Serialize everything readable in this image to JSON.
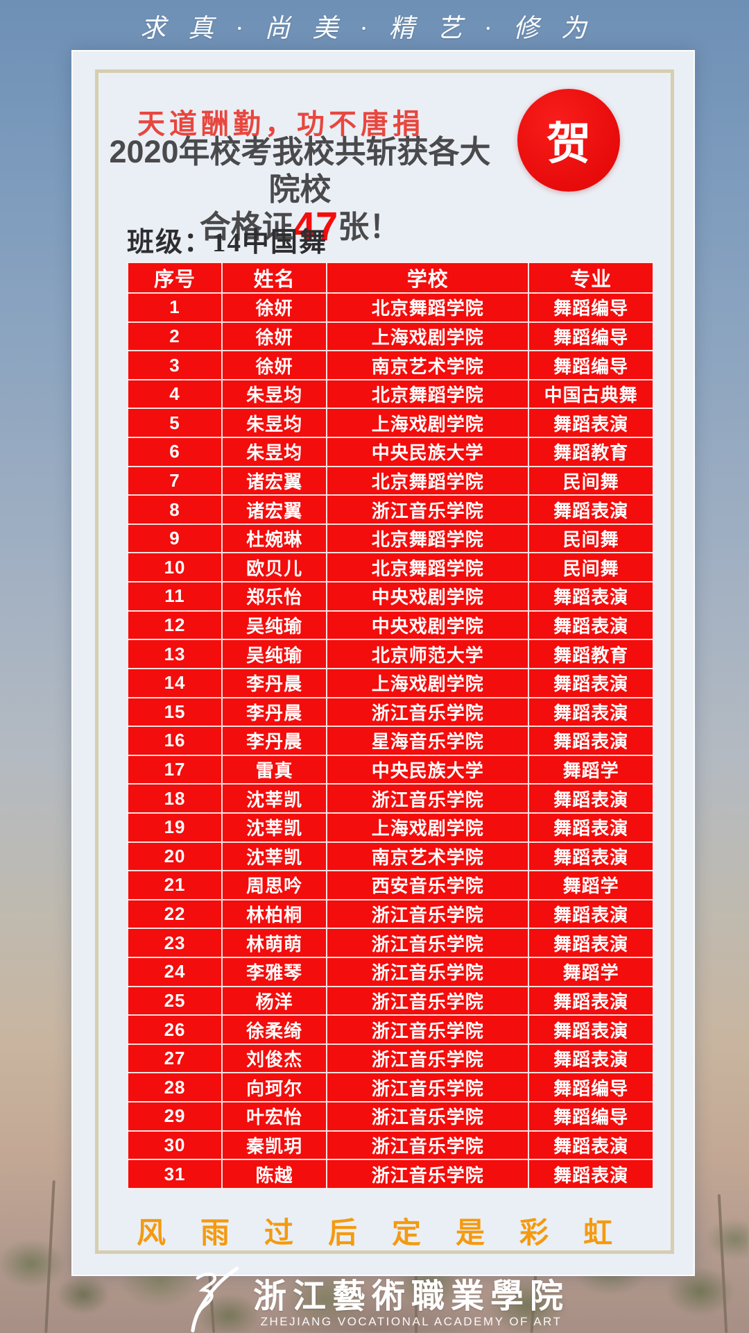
{
  "motto": "求真·尚美·精艺·修为",
  "card": {
    "slogan_calligraphy": "天道酬勤，功不唐捐",
    "title_line1": "2020年校考我校共斩获各大院校",
    "title_line2_prefix": "合格证",
    "certificate_count": "47",
    "title_line2_suffix": "张！",
    "badge": "贺",
    "class_label": "班级：14中国舞",
    "bottom_slogan": "风雨过后定是彩虹"
  },
  "table": {
    "headers": [
      "序号",
      "姓名",
      "学校",
      "专业"
    ],
    "rows": [
      [
        "1",
        "徐妍",
        "北京舞蹈学院",
        "舞蹈编导"
      ],
      [
        "2",
        "徐妍",
        "上海戏剧学院",
        "舞蹈编导"
      ],
      [
        "3",
        "徐妍",
        "南京艺术学院",
        "舞蹈编导"
      ],
      [
        "4",
        "朱昱均",
        "北京舞蹈学院",
        "中国古典舞"
      ],
      [
        "5",
        "朱昱均",
        "上海戏剧学院",
        "舞蹈表演"
      ],
      [
        "6",
        "朱昱均",
        "中央民族大学",
        "舞蹈教育"
      ],
      [
        "7",
        "诸宏翼",
        "北京舞蹈学院",
        "民间舞"
      ],
      [
        "8",
        "诸宏翼",
        "浙江音乐学院",
        "舞蹈表演"
      ],
      [
        "9",
        "杜婉琳",
        "北京舞蹈学院",
        "民间舞"
      ],
      [
        "10",
        "欧贝儿",
        "北京舞蹈学院",
        "民间舞"
      ],
      [
        "11",
        "郑乐怡",
        "中央戏剧学院",
        "舞蹈表演"
      ],
      [
        "12",
        "吴纯瑜",
        "中央戏剧学院",
        "舞蹈表演"
      ],
      [
        "13",
        "吴纯瑜",
        "北京师范大学",
        "舞蹈教育"
      ],
      [
        "14",
        "李丹晨",
        "上海戏剧学院",
        "舞蹈表演"
      ],
      [
        "15",
        "李丹晨",
        "浙江音乐学院",
        "舞蹈表演"
      ],
      [
        "16",
        "李丹晨",
        "星海音乐学院",
        "舞蹈表演"
      ],
      [
        "17",
        "雷真",
        "中央民族大学",
        "舞蹈学"
      ],
      [
        "18",
        "沈莘凯",
        "浙江音乐学院",
        "舞蹈表演"
      ],
      [
        "19",
        "沈莘凯",
        "上海戏剧学院",
        "舞蹈表演"
      ],
      [
        "20",
        "沈莘凯",
        "南京艺术学院",
        "舞蹈表演"
      ],
      [
        "21",
        "周思吟",
        "西安音乐学院",
        "舞蹈学"
      ],
      [
        "22",
        "林柏桐",
        "浙江音乐学院",
        "舞蹈表演"
      ],
      [
        "23",
        "林萌萌",
        "浙江音乐学院",
        "舞蹈表演"
      ],
      [
        "24",
        "李雅琴",
        "浙江音乐学院",
        "舞蹈学"
      ],
      [
        "25",
        "杨洋",
        "浙江音乐学院",
        "舞蹈表演"
      ],
      [
        "26",
        "徐柔绮",
        "浙江音乐学院",
        "舞蹈表演"
      ],
      [
        "27",
        "刘俊杰",
        "浙江音乐学院",
        "舞蹈表演"
      ],
      [
        "28",
        "向珂尔",
        "浙江音乐学院",
        "舞蹈编导"
      ],
      [
        "29",
        "叶宏怡",
        "浙江音乐学院",
        "舞蹈编导"
      ],
      [
        "30",
        "秦凯玥",
        "浙江音乐学院",
        "舞蹈表演"
      ],
      [
        "31",
        "陈越",
        "浙江音乐学院",
        "舞蹈表演"
      ]
    ]
  },
  "footer": {
    "academy_name_cn": "浙江藝術職業學院",
    "academy_name_en": "ZHEJIANG VOCATIONAL ACADEMY OF ART"
  },
  "colors": {
    "table_red": "#f30d0c",
    "badge_red": "#e70b0b",
    "accent_red": "#e8463e",
    "orange": "#f49a10",
    "title_gray": "#4a4a4c",
    "frame_tan": "#d6ceb1"
  }
}
